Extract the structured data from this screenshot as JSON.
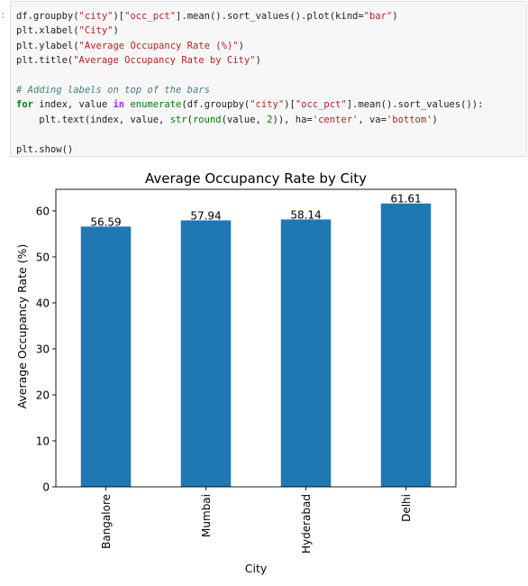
{
  "cell": {
    "prompt": ":",
    "code": {
      "l1_a": "df.groupby(",
      "l1_s1": "\"city\"",
      "l1_b": ")[",
      "l1_s2": "\"occ_pct\"",
      "l1_c": "].mean().sort_values().plot(kind=",
      "l1_s3": "\"bar\"",
      "l1_d": ")",
      "l2_a": "plt.xlabel(",
      "l2_s1": "\"City\"",
      "l2_b": ")",
      "l3_a": "plt.ylabel(",
      "l3_s1": "\"Average Occupancy Rate (%)\"",
      "l3_b": ")",
      "l4_a": "plt.title(",
      "l4_s1": "\"Average Occupancy Rate by City\"",
      "l4_b": ")",
      "l6_comment": "# Adding labels on top of the bars",
      "l7_kw1": "for",
      "l7_a": " index, value ",
      "l7_kw2": "in",
      "l7_b": " ",
      "l7_fn1": "enumerate",
      "l7_c": "(df.groupby(",
      "l7_s1": "\"city\"",
      "l7_d": ")[",
      "l7_s2": "\"occ_pct\"",
      "l7_e": "].mean().sort_values()):",
      "l8_a": "    plt.text(index, value, ",
      "l8_fn1": "str",
      "l8_b": "(",
      "l8_fn2": "round",
      "l8_c": "(value, ",
      "l8_num": "2",
      "l8_d": ")), ha=",
      "l8_s1": "'center'",
      "l8_e": ", va=",
      "l8_s2": "'bottom'",
      "l8_f": ")",
      "l10_a": "plt.show()"
    }
  },
  "chart_data": {
    "type": "bar",
    "title": "Average Occupancy Rate by City",
    "xlabel": "City",
    "ylabel": "Average Occupancy Rate (%)",
    "categories": [
      "Bangalore",
      "Mumbai",
      "Hyderabad",
      "Delhi"
    ],
    "values": [
      56.59,
      57.94,
      58.14,
      61.61
    ],
    "value_labels": [
      "56.59",
      "57.94",
      "58.14",
      "61.61"
    ],
    "ylim": [
      0,
      64.69
    ],
    "yticks": [
      0,
      10,
      20,
      30,
      40,
      50,
      60
    ],
    "ytick_labels": [
      "0",
      "10",
      "20",
      "30",
      "40",
      "50",
      "60"
    ],
    "bar_color": "#1f77b4",
    "grid": false,
    "legend": "none"
  }
}
